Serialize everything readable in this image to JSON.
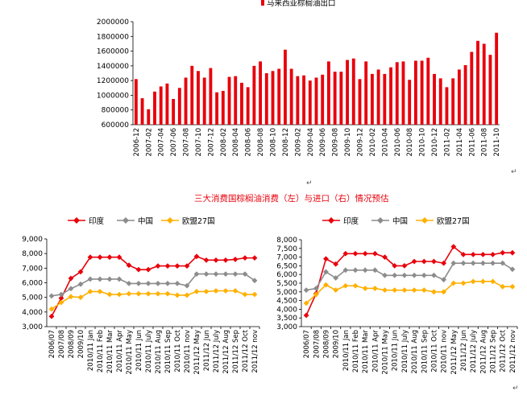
{
  "edit_marks": [
    "↵",
    "↵",
    "↵"
  ],
  "section_title": "三大消费国棕榈油消费（左）与进口（右）情况预估",
  "chart_data": [
    {
      "type": "bar",
      "legend": [
        "马来西亚棕榈油出口"
      ],
      "series_color": "#e8000b",
      "categories": [
        "2006-12",
        "",
        "2007-02",
        "",
        "2007-04",
        "",
        "2007-06",
        "",
        "2007-08",
        "",
        "2007-10",
        "",
        "2007-12",
        "",
        "2008-02",
        "",
        "2008-04",
        "",
        "2008-06",
        "",
        "2008-08",
        "",
        "2008-10",
        "",
        "2008-12",
        "",
        "2009-02",
        "",
        "2009-04",
        "",
        "2009-06",
        "",
        "2009-08",
        "",
        "2009-10",
        "",
        "2009-12",
        "",
        "2010-02",
        "",
        "2010-04",
        "",
        "2010-06",
        "",
        "2010-08",
        "",
        "2010-10",
        "",
        "2010-12",
        "",
        "2011-02",
        "",
        "2011-04",
        "",
        "2011-06",
        "",
        "2011-08",
        "",
        "2011-10"
      ],
      "values": [
        1220000,
        960000,
        810000,
        1050000,
        1120000,
        1160000,
        950000,
        1100000,
        1240000,
        1400000,
        1330000,
        1240000,
        1370000,
        1040000,
        1060000,
        1250000,
        1260000,
        1170000,
        1110000,
        1400000,
        1460000,
        1300000,
        1330000,
        1360000,
        1620000,
        1360000,
        1260000,
        1270000,
        1200000,
        1240000,
        1280000,
        1460000,
        1320000,
        1320000,
        1480000,
        1500000,
        1220000,
        1460000,
        1290000,
        1350000,
        1290000,
        1380000,
        1450000,
        1460000,
        1210000,
        1470000,
        1470000,
        1510000,
        1290000,
        1230000,
        1110000,
        1230000,
        1350000,
        1410000,
        1590000,
        1740000,
        1700000,
        1550000,
        1850000
      ],
      "yticks": [
        "2000000",
        "1800000",
        "1600000",
        "1400000",
        "1200000",
        "1000000",
        "800000",
        "600000"
      ],
      "ylim": [
        600000,
        2000000
      ]
    },
    {
      "type": "line",
      "legend_position": "top",
      "categories": [
        "2006/07",
        "2007/08",
        "2008/09",
        "2009/10",
        "2010/11 Jan",
        "2010/11 Feb",
        "2010/11 Mar",
        "2010/11 Apr",
        "2010/11 May",
        "2010/11 Jun",
        "2010/11 July",
        "2010/11 Aug",
        "2010/11 Sep",
        "2010/11 Oct",
        "2010/11 nov",
        "2011/12 May",
        "2011/12 Jun",
        "2011/12 July",
        "2011/12 Aug",
        "2011/12 Sep",
        "2011/12 Oct",
        "2011/12 nov"
      ],
      "series": [
        {
          "name": "印度",
          "color": "#e8000b",
          "marker": "diamond",
          "values": [
            3700,
            4950,
            6300,
            6750,
            7750,
            7750,
            7750,
            7750,
            7200,
            6900,
            6900,
            7150,
            7150,
            7150,
            7150,
            7800,
            7550,
            7550,
            7550,
            7600,
            7700,
            7700
          ]
        },
        {
          "name": "中国",
          "color": "#8c8c8c",
          "marker": "diamond",
          "values": [
            5100,
            5200,
            5600,
            5900,
            6250,
            6250,
            6250,
            6250,
            5950,
            5950,
            5950,
            5950,
            5950,
            5950,
            5800,
            6600,
            6600,
            6600,
            6600,
            6600,
            6600,
            6150
          ]
        },
        {
          "name": "欧盟27国",
          "color": "#ffb000",
          "marker": "diamond",
          "values": [
            4200,
            4650,
            5050,
            5000,
            5400,
            5400,
            5200,
            5200,
            5250,
            5250,
            5250,
            5250,
            5250,
            5150,
            5150,
            5400,
            5400,
            5450,
            5450,
            5450,
            5200,
            5200
          ]
        }
      ],
      "yticks": [
        "9,000",
        "8,000",
        "7,000",
        "6,000",
        "5,000",
        "4,000",
        "3,000"
      ],
      "ylim": [
        3000,
        9000
      ]
    },
    {
      "type": "line",
      "legend_position": "top",
      "categories": [
        "2006/07",
        "2007/08",
        "2008/09",
        "2009/10",
        "2010/11 Jan",
        "2010/11 Feb",
        "2010/11 Mar",
        "2010/11 Apr",
        "2010/11 May",
        "2010/11 Jun",
        "2010/11 July",
        "2010/11 Aug",
        "2010/11 Sep",
        "2010/11 Oct",
        "2010/11 nov",
        "2011/12 May",
        "2011/12 Jun",
        "2011/12 July",
        "2011/12 Aug",
        "2011/12 Sep",
        "2011/12 Oct",
        "2011/12 nov"
      ],
      "series": [
        {
          "name": "印度",
          "color": "#e8000b",
          "marker": "diamond",
          "values": [
            3650,
            4900,
            6900,
            6600,
            7200,
            7200,
            7200,
            7200,
            7000,
            6500,
            6500,
            6750,
            6750,
            6750,
            6650,
            7600,
            7150,
            7150,
            7150,
            7150,
            7250,
            7250
          ]
        },
        {
          "name": "中国",
          "color": "#8c8c8c",
          "marker": "diamond",
          "values": [
            5100,
            5200,
            6150,
            5800,
            6250,
            6250,
            6250,
            6250,
            5950,
            5950,
            5950,
            5950,
            5950,
            5950,
            5700,
            6650,
            6650,
            6650,
            6650,
            6650,
            6650,
            6300
          ]
        },
        {
          "name": "欧盟27国",
          "color": "#ffb000",
          "marker": "diamond",
          "values": [
            4350,
            4850,
            5400,
            5100,
            5350,
            5350,
            5200,
            5200,
            5100,
            5100,
            5100,
            5100,
            5100,
            5000,
            5000,
            5500,
            5500,
            5600,
            5600,
            5600,
            5300,
            5300
          ]
        }
      ],
      "yticks": [
        "8,000",
        "7,500",
        "7,000",
        "6,500",
        "6,000",
        "5,500",
        "5,000",
        "4,500",
        "4,000",
        "3,500",
        "3,000"
      ],
      "ylim": [
        3000,
        8000
      ]
    }
  ]
}
